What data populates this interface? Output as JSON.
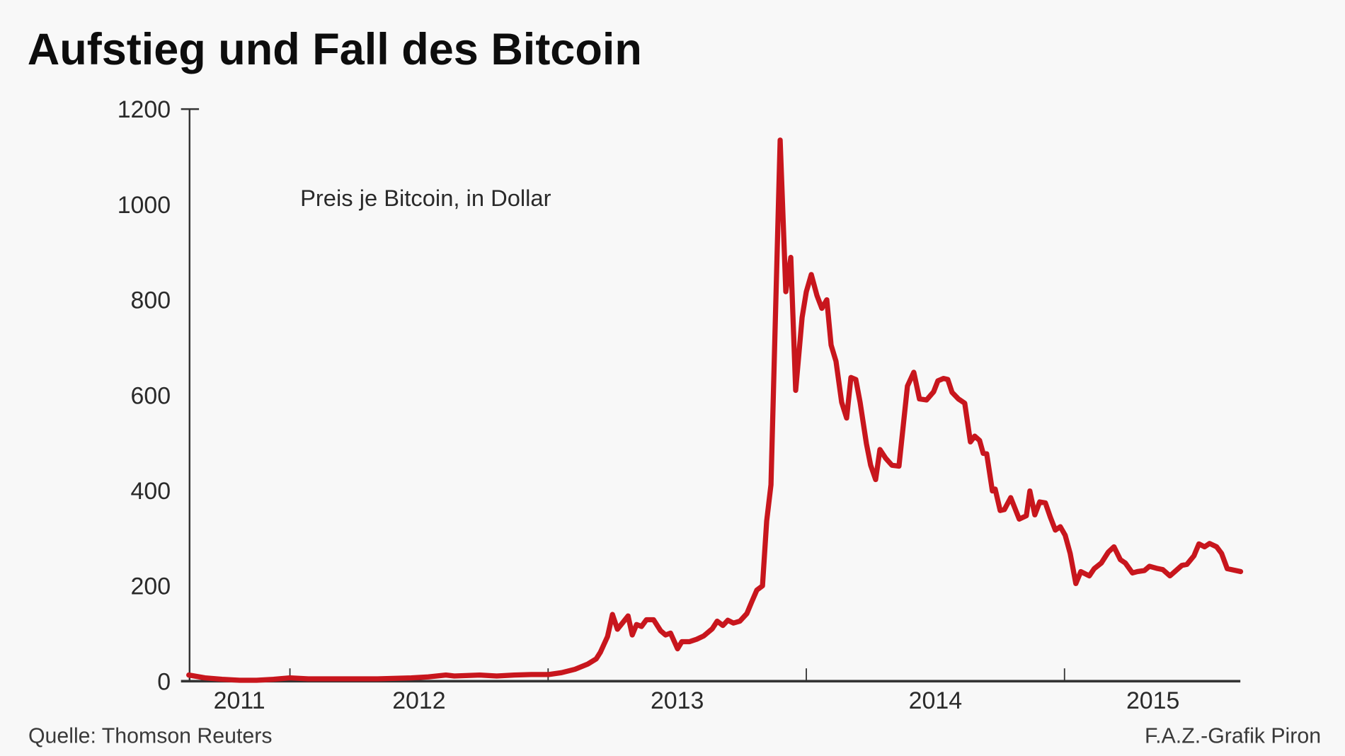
{
  "chart_data": {
    "type": "line",
    "title": "Aufstieg und Fall des Bitcoin",
    "annotation": "Preis je Bitcoin, in Dollar",
    "xlabel": "",
    "ylabel": "",
    "ylim": [
      0,
      1200
    ],
    "xlim": [
      "2011-08-11",
      "2015-09-08"
    ],
    "yticks": [
      "0",
      "200",
      "400",
      "600",
      "800",
      "1000",
      "1200"
    ],
    "xtick_labels": [
      "2011",
      "2012",
      "2013",
      "2014",
      "2015"
    ],
    "grid": false,
    "line_color": "#c8161d",
    "series": [
      {
        "points": [
          [
            "2011-08-11",
            13
          ],
          [
            "2011-09-03",
            7
          ],
          [
            "2011-09-27",
            4
          ],
          [
            "2011-10-22",
            2
          ],
          [
            "2011-11-15",
            2
          ],
          [
            "2011-12-09",
            4
          ],
          [
            "2012-01-01",
            7
          ],
          [
            "2012-01-27",
            5
          ],
          [
            "2012-03-16",
            5
          ],
          [
            "2012-05-04",
            5
          ],
          [
            "2012-06-21",
            7
          ],
          [
            "2012-07-15",
            9
          ],
          [
            "2012-08-09",
            13
          ],
          [
            "2012-08-21",
            11
          ],
          [
            "2012-09-26",
            13
          ],
          [
            "2012-10-20",
            11
          ],
          [
            "2012-11-14",
            13
          ],
          [
            "2012-12-08",
            14
          ],
          [
            "2013-01-02",
            14
          ],
          [
            "2013-01-20",
            18
          ],
          [
            "2013-02-08",
            25
          ],
          [
            "2013-02-26",
            36
          ],
          [
            "2013-03-10",
            47
          ],
          [
            "2013-03-16",
            61
          ],
          [
            "2013-03-26",
            94
          ],
          [
            "2013-04-02",
            140
          ],
          [
            "2013-04-09",
            109
          ],
          [
            "2013-04-16",
            122
          ],
          [
            "2013-04-24",
            137
          ],
          [
            "2013-04-30",
            97
          ],
          [
            "2013-05-06",
            119
          ],
          [
            "2013-05-13",
            115
          ],
          [
            "2013-05-20",
            129
          ],
          [
            "2013-05-30",
            129
          ],
          [
            "2013-06-09",
            106
          ],
          [
            "2013-06-16",
            97
          ],
          [
            "2013-06-23",
            101
          ],
          [
            "2013-07-03",
            68
          ],
          [
            "2013-07-09",
            83
          ],
          [
            "2013-07-20",
            83
          ],
          [
            "2013-07-30",
            88
          ],
          [
            "2013-08-09",
            95
          ],
          [
            "2013-08-21",
            110
          ],
          [
            "2013-08-28",
            126
          ],
          [
            "2013-09-05",
            117
          ],
          [
            "2013-09-12",
            128
          ],
          [
            "2013-09-20",
            122
          ],
          [
            "2013-09-29",
            126
          ],
          [
            "2013-10-09",
            142
          ],
          [
            "2013-10-16",
            167
          ],
          [
            "2013-10-23",
            191
          ],
          [
            "2013-10-31",
            200
          ],
          [
            "2013-11-06",
            336
          ],
          [
            "2013-11-12",
            412
          ],
          [
            "2013-11-18",
            745
          ],
          [
            "2013-11-25",
            1135
          ],
          [
            "2013-12-03",
            817
          ],
          [
            "2013-12-10",
            889
          ],
          [
            "2013-12-17",
            610
          ],
          [
            "2013-12-26",
            763
          ],
          [
            "2014-01-01",
            817
          ],
          [
            "2014-01-08",
            853
          ],
          [
            "2014-01-16",
            809
          ],
          [
            "2014-01-23",
            782
          ],
          [
            "2014-01-30",
            800
          ],
          [
            "2014-02-05",
            705
          ],
          [
            "2014-02-12",
            671
          ],
          [
            "2014-02-20",
            585
          ],
          [
            "2014-02-27",
            552
          ],
          [
            "2014-03-05",
            637
          ],
          [
            "2014-03-12",
            633
          ],
          [
            "2014-03-18",
            585
          ],
          [
            "2014-03-27",
            498
          ],
          [
            "2014-04-02",
            453
          ],
          [
            "2014-04-09",
            423
          ],
          [
            "2014-04-15",
            486
          ],
          [
            "2014-04-23",
            468
          ],
          [
            "2014-05-02",
            453
          ],
          [
            "2014-05-12",
            451
          ],
          [
            "2014-05-24",
            619
          ],
          [
            "2014-06-02",
            648
          ],
          [
            "2014-06-10",
            592
          ],
          [
            "2014-06-20",
            590
          ],
          [
            "2014-06-30",
            607
          ],
          [
            "2014-07-06",
            630
          ],
          [
            "2014-07-14",
            635
          ],
          [
            "2014-07-20",
            633
          ],
          [
            "2014-07-26",
            606
          ],
          [
            "2014-08-04",
            592
          ],
          [
            "2014-08-13",
            583
          ],
          [
            "2014-08-21",
            502
          ],
          [
            "2014-08-27",
            514
          ],
          [
            "2014-09-03",
            505
          ],
          [
            "2014-09-08",
            478
          ],
          [
            "2014-09-13",
            477
          ],
          [
            "2014-09-21",
            399
          ],
          [
            "2014-09-25",
            403
          ],
          [
            "2014-10-02",
            358
          ],
          [
            "2014-10-08",
            360
          ],
          [
            "2014-10-17",
            385
          ],
          [
            "2014-10-29",
            340
          ],
          [
            "2014-11-08",
            347
          ],
          [
            "2014-11-13",
            399
          ],
          [
            "2014-11-20",
            349
          ],
          [
            "2014-11-27",
            376
          ],
          [
            "2014-12-05",
            374
          ],
          [
            "2014-12-12",
            344
          ],
          [
            "2014-12-19",
            317
          ],
          [
            "2014-12-26",
            324
          ],
          [
            "2015-01-02",
            306
          ],
          [
            "2015-01-09",
            268
          ],
          [
            "2015-01-17",
            205
          ],
          [
            "2015-01-24",
            230
          ],
          [
            "2015-02-05",
            221
          ],
          [
            "2015-02-12",
            236
          ],
          [
            "2015-02-22",
            248
          ],
          [
            "2015-03-04",
            271
          ],
          [
            "2015-03-12",
            282
          ],
          [
            "2015-03-21",
            255
          ],
          [
            "2015-03-28",
            248
          ],
          [
            "2015-04-07",
            227
          ],
          [
            "2015-04-14",
            230
          ],
          [
            "2015-04-24",
            232
          ],
          [
            "2015-05-01",
            241
          ],
          [
            "2015-05-11",
            237
          ],
          [
            "2015-05-20",
            234
          ],
          [
            "2015-05-30",
            221
          ],
          [
            "2015-06-06",
            230
          ],
          [
            "2015-06-16",
            243
          ],
          [
            "2015-06-23",
            245
          ],
          [
            "2015-07-03",
            263
          ],
          [
            "2015-07-10",
            288
          ],
          [
            "2015-07-18",
            282
          ],
          [
            "2015-07-25",
            289
          ],
          [
            "2015-08-04",
            282
          ],
          [
            "2015-08-11",
            268
          ],
          [
            "2015-08-19",
            236
          ],
          [
            "2015-09-07",
            230
          ]
        ]
      }
    ]
  },
  "footer": {
    "source": "Quelle: Thomson Reuters",
    "credit": "F.A.Z.-Grafik Piron"
  }
}
